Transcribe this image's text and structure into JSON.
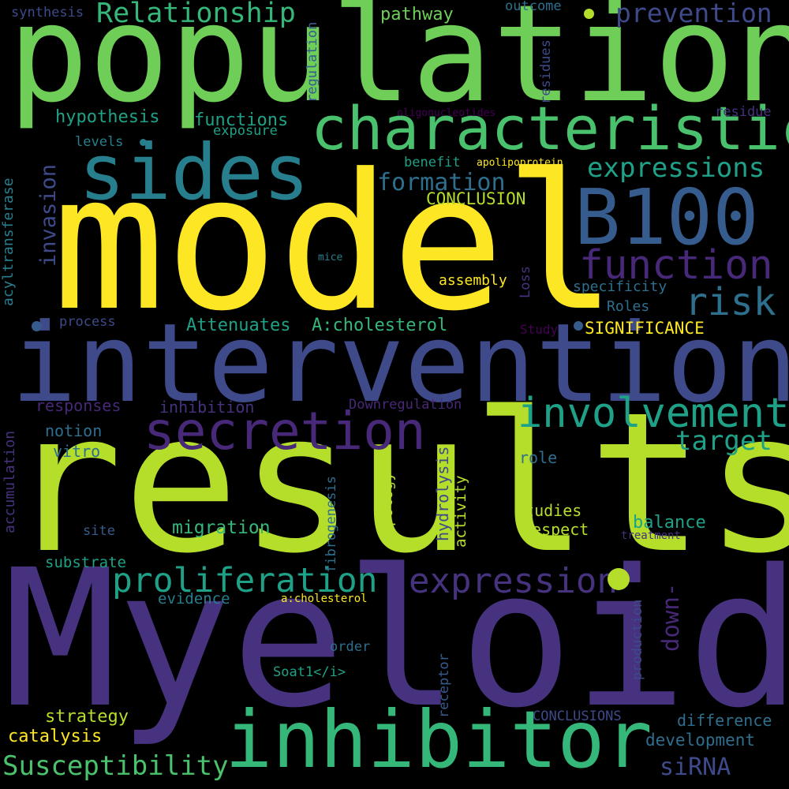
{
  "palette": {
    "background": "#000000",
    "dark_purple": "#46327e",
    "purple": "#482878",
    "indigo": "#3e4a89",
    "blue": "#365c8d",
    "steel": "#2e6f8e",
    "teal": "#277f8e",
    "teal_green": "#1fa187",
    "green": "#35b779",
    "light_green": "#4ac16d",
    "lime": "#6ece58",
    "yellow_green": "#b5de2b",
    "yellow": "#fde725",
    "deep_purple": "#440154"
  },
  "words": [
    {
      "key": "myeloid",
      "text": "Myeloid"
    },
    {
      "key": "results",
      "text": "results"
    },
    {
      "key": "model",
      "text": "model"
    },
    {
      "key": "population",
      "text": "population"
    },
    {
      "key": "interventions",
      "text": "interventions"
    },
    {
      "key": "characteristics",
      "text": "characteristics"
    },
    {
      "key": "inhibitor",
      "text": "inhibitor"
    },
    {
      "key": "sides",
      "text": "sides"
    },
    {
      "key": "b100",
      "text": "B100"
    },
    {
      "key": "secretion",
      "text": "secretion"
    },
    {
      "key": "involvement",
      "text": "involvement"
    },
    {
      "key": "function",
      "text": "function"
    },
    {
      "key": "expression",
      "text": "expression"
    },
    {
      "key": "proliferation",
      "text": "proliferation"
    },
    {
      "key": "risk",
      "text": "risk"
    },
    {
      "key": "relationship",
      "text": "Relationship"
    },
    {
      "key": "prevention",
      "text": "prevention"
    },
    {
      "key": "expressions",
      "text": "expressions"
    },
    {
      "key": "susceptibility",
      "text": "Susceptibility"
    },
    {
      "key": "target",
      "text": "target"
    },
    {
      "key": "formation",
      "text": "formation"
    },
    {
      "key": "invasion",
      "text": "invasion"
    },
    {
      "key": "down",
      "text": "down-"
    },
    {
      "key": "sirna",
      "text": "siRNA"
    },
    {
      "key": "attenuates",
      "text": "Attenuates"
    },
    {
      "key": "a_cholesterol_upper",
      "text": "A:cholesterol"
    },
    {
      "key": "migration",
      "text": "migration"
    },
    {
      "key": "hypothesis",
      "text": "hypothesis"
    },
    {
      "key": "functions",
      "text": "functions"
    },
    {
      "key": "pathway",
      "text": "pathway"
    },
    {
      "key": "conclusion",
      "text": "CONCLUSION"
    },
    {
      "key": "significance",
      "text": "SIGNIFICANCE"
    },
    {
      "key": "balance",
      "text": "balance"
    },
    {
      "key": "development",
      "text": "development"
    },
    {
      "key": "difference",
      "text": "difference"
    },
    {
      "key": "strategy",
      "text": "strategy"
    },
    {
      "key": "catalysis",
      "text": "catalysis"
    },
    {
      "key": "responses",
      "text": "responses"
    },
    {
      "key": "inhibition",
      "text": "inhibition"
    },
    {
      "key": "notion",
      "text": "notion"
    },
    {
      "key": "vitro",
      "text": "vitro"
    },
    {
      "key": "substrate",
      "text": "substrate"
    },
    {
      "key": "evidence",
      "text": "evidence"
    },
    {
      "key": "studies",
      "text": "studies"
    },
    {
      "key": "respect",
      "text": "respect"
    },
    {
      "key": "role",
      "text": "role"
    },
    {
      "key": "assembly",
      "text": "assembly"
    },
    {
      "key": "specificity",
      "text": "specificity"
    },
    {
      "key": "roles",
      "text": "Roles"
    },
    {
      "key": "benefit",
      "text": "benefit"
    },
    {
      "key": "exposure",
      "text": "exposure"
    },
    {
      "key": "levels",
      "text": "levels"
    },
    {
      "key": "process",
      "text": "process"
    },
    {
      "key": "outcome",
      "text": "outcome"
    },
    {
      "key": "synthesis",
      "text": "synthesis"
    },
    {
      "key": "residue",
      "text": "residue"
    },
    {
      "key": "downregulation",
      "text": "Downregulation"
    },
    {
      "key": "order",
      "text": "order"
    },
    {
      "key": "soat1",
      "text": "Soat1</i>"
    },
    {
      "key": "conclusions",
      "text": "CONCLUSIONS"
    },
    {
      "key": "site",
      "text": "site"
    },
    {
      "key": "treatment",
      "text": "treatment"
    },
    {
      "key": "a_cholesterol_lower",
      "text": "a:cholesterol"
    },
    {
      "key": "apolipoprotein",
      "text": "apolipoprotein"
    },
    {
      "key": "oligonucleotides",
      "text": "oligonucleotides"
    },
    {
      "key": "mice",
      "text": "mice"
    },
    {
      "key": "study",
      "text": "Study"
    },
    {
      "key": "regulation",
      "text": "regulation"
    },
    {
      "key": "residues",
      "text": "residues"
    },
    {
      "key": "acyltransferase",
      "text": "acyltransferase"
    },
    {
      "key": "accumulation",
      "text": "accumulation"
    },
    {
      "key": "fibrogenesis",
      "text": "fibrogenesis"
    },
    {
      "key": "topology",
      "text": "topology"
    },
    {
      "key": "hydrolysis",
      "text": "hydrolysis"
    },
    {
      "key": "activity",
      "text": "activity"
    },
    {
      "key": "receptor",
      "text": "receptor"
    },
    {
      "key": "production",
      "text": "production"
    },
    {
      "key": "loss",
      "text": "Loss"
    }
  ]
}
